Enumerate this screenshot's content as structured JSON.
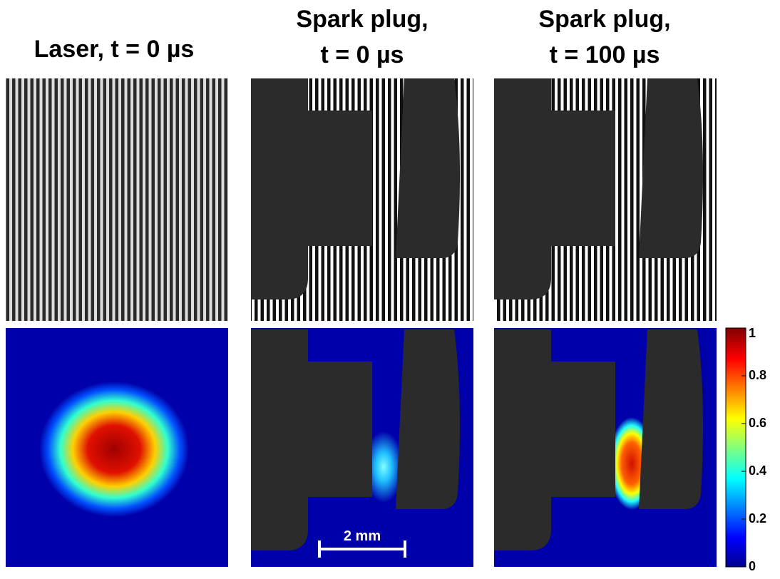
{
  "titles": [
    [
      "Laser, t = 0 µs"
    ],
    [
      "Spark plug,",
      "t = 0 µs"
    ],
    [
      "Spark plug,",
      "t = 100 µs"
    ]
  ],
  "scale_bar": "2 mm",
  "colorbar": {
    "lim": [
      0,
      1
    ],
    "ticks": [
      0,
      0.2,
      0.4,
      0.6,
      0.8,
      1
    ]
  }
}
